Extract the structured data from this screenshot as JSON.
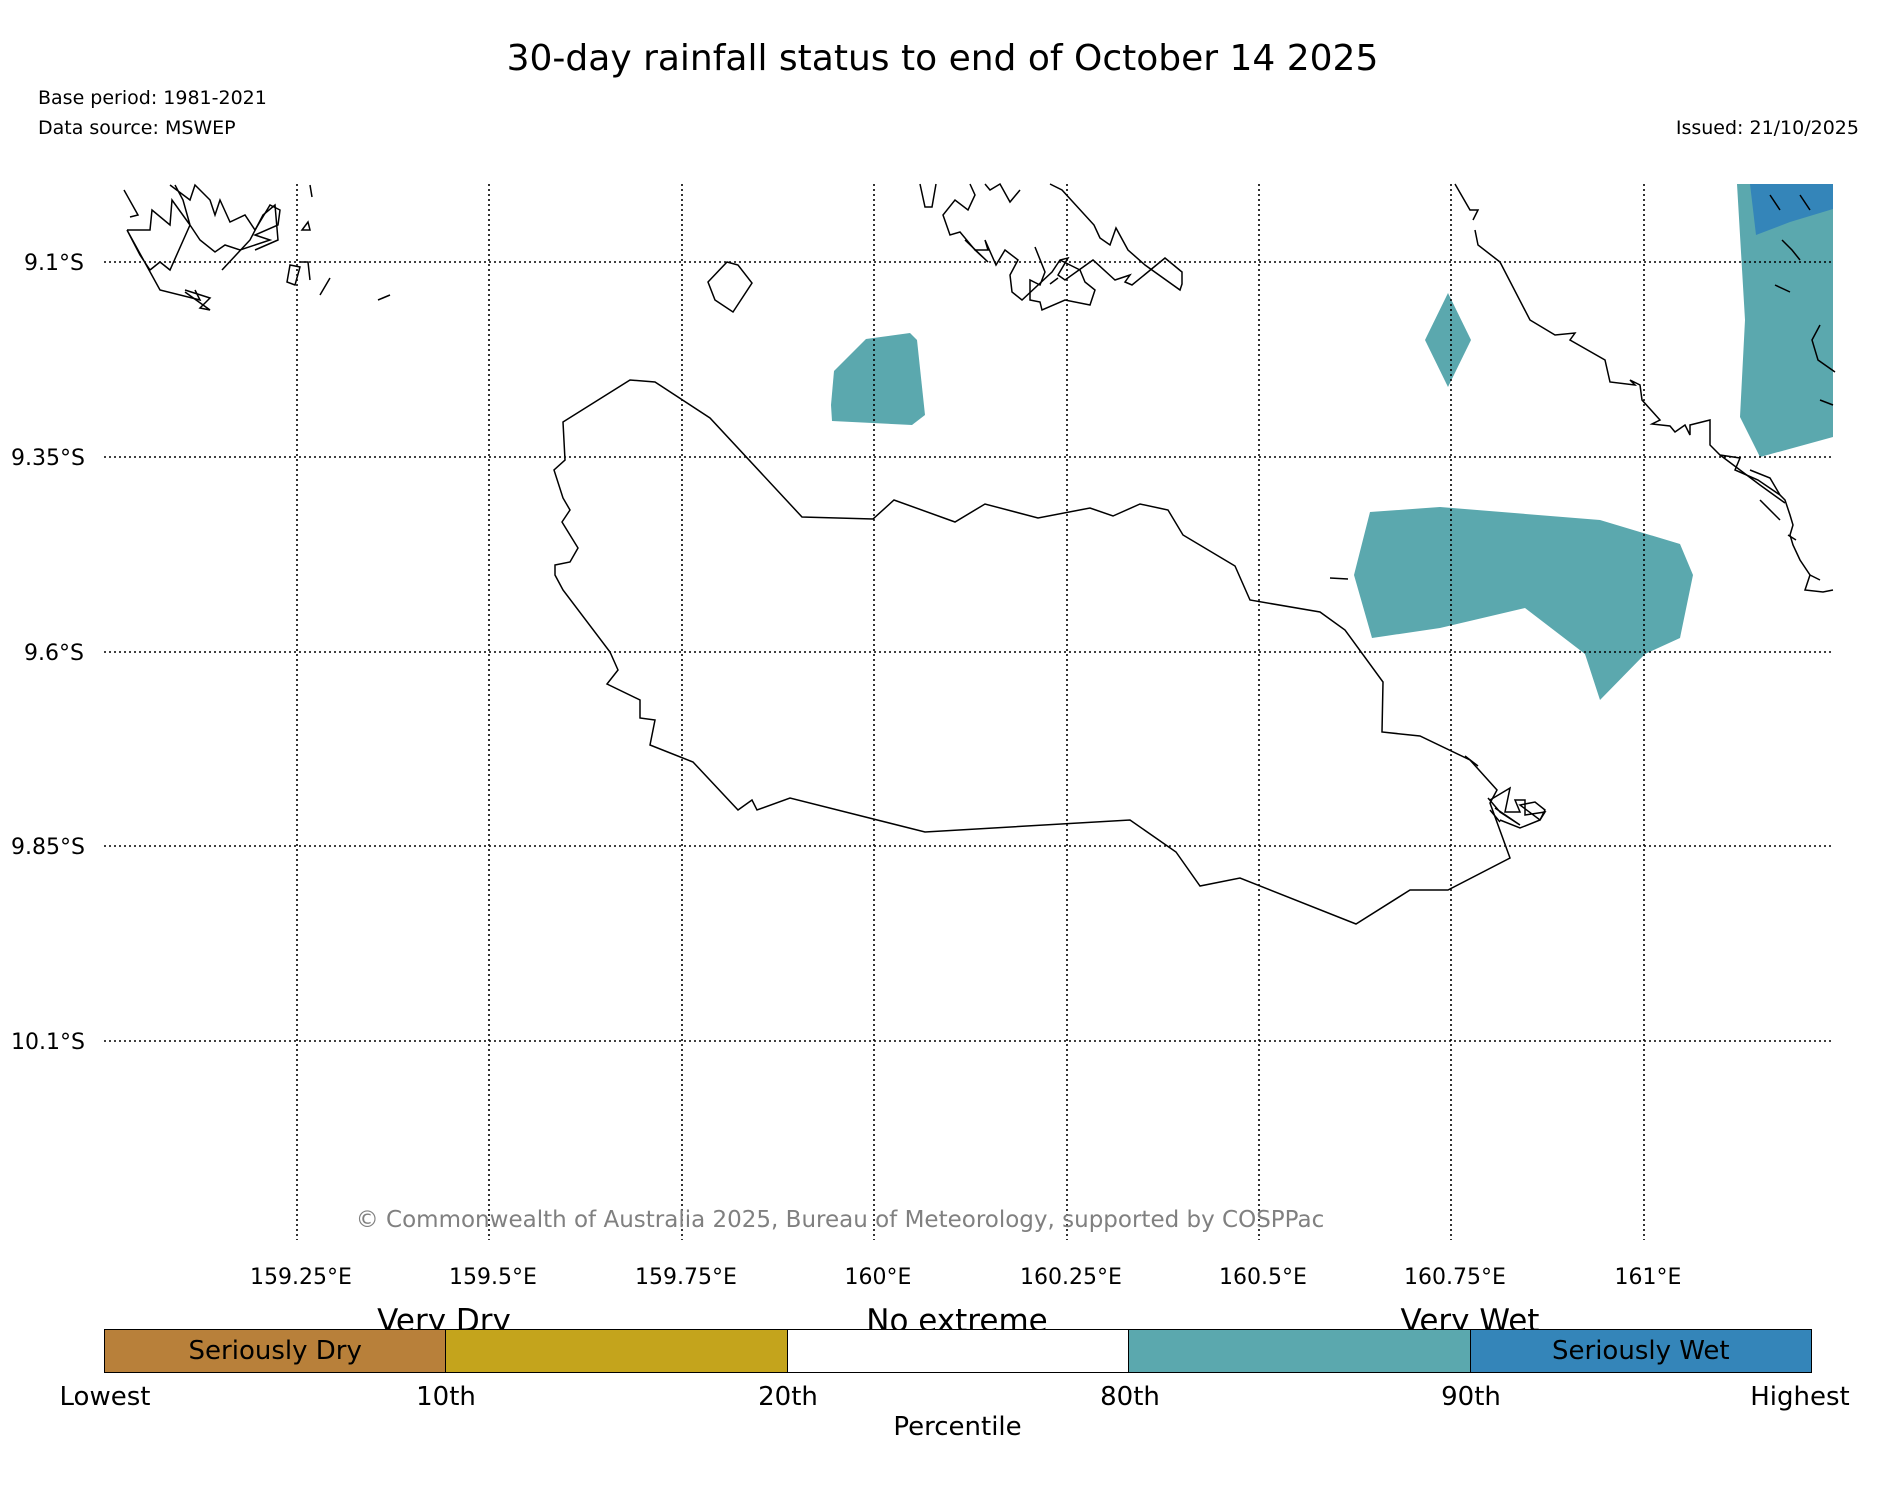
{
  "title": "30-day rainfall status to end of October 14 2025",
  "base_period": "Base period: 1981-2021",
  "data_source": "Data source: MSWEP",
  "issued": "Issued: 21/10/2025",
  "copyright": "© Commonwealth of Australia 2025, Bureau of Meteorology, supported by COSPPac",
  "lat_ticks": [
    "9.1°S",
    "9.35°S",
    "9.6°S",
    "9.85°S",
    "10.1°S"
  ],
  "lon_ticks": [
    "159.25°E",
    "159.5°E",
    "159.75°E",
    "160°E",
    "160.25°E",
    "160.5°E",
    "160.75°E",
    "161°E"
  ],
  "legend": {
    "groups": [
      "Very Dry",
      "No extreme",
      "Very Wet"
    ],
    "segments": [
      {
        "label": "Seriously Dry",
        "color": "#b8803a"
      },
      {
        "label": "",
        "color": "#c4a41c"
      },
      {
        "label": "",
        "color": "#ffffff"
      },
      {
        "label": "",
        "color": "#5ba8ae"
      },
      {
        "label": "Seriously Wet",
        "color": "#3485b9"
      }
    ],
    "percentiles": [
      "Lowest",
      "10th",
      "20th",
      "80th",
      "90th",
      "Highest"
    ],
    "axis_label": "Percentile"
  },
  "colors": {
    "very_wet": "#5ba8ae",
    "seriously_wet": "#3485b9",
    "coastline": "#000000"
  }
}
